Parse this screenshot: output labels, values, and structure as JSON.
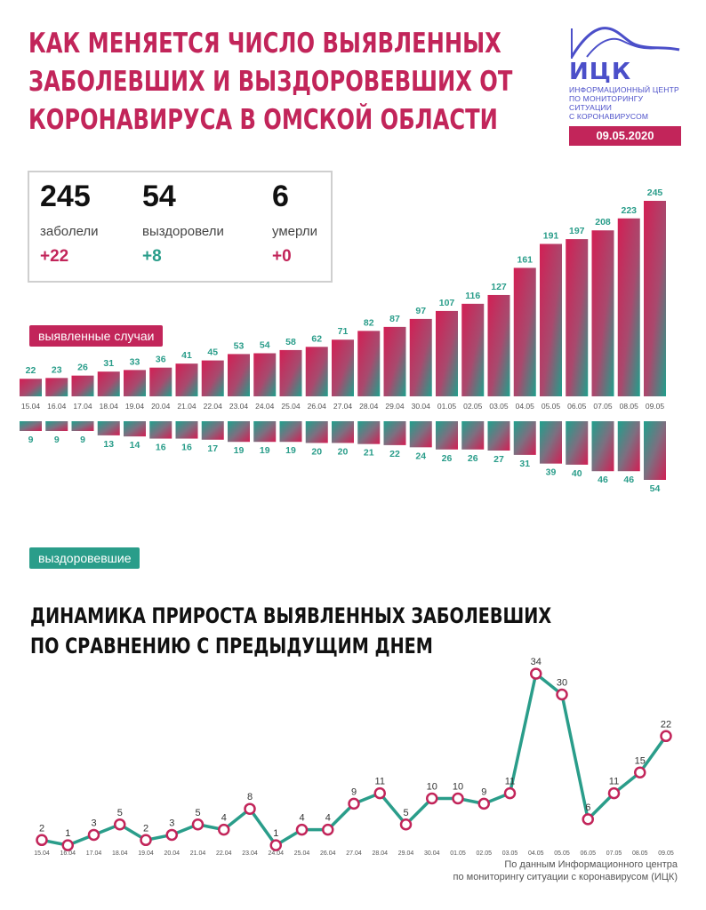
{
  "title": {
    "line1": "КАК МЕНЯЕТСЯ ЧИСЛО ВЫЯВЛЕННЫХ",
    "line2": "ЗАБОЛЕВШИХ И ВЫЗДОРОВЕВШИХ ОТ",
    "line3": "КОРОНАВИРУСА В ОМСКОЙ ОБЛАСТИ"
  },
  "logo": {
    "name": "ИЦК",
    "sub1": "ИНФОРМАЦИОННЫЙ ЦЕНТР",
    "sub2": "ПО МОНИТОРИНГУ СИТУАЦИИ",
    "sub3": "С КОРОНАВИРУСОМ",
    "date": "09.05.2020"
  },
  "stats": {
    "cases": {
      "value": "245",
      "label": "заболели",
      "delta": "+22"
    },
    "recovered": {
      "value": "54",
      "label": "выздоровели",
      "delta": "+8"
    },
    "deaths": {
      "value": "6",
      "label": "умерли",
      "delta": "+0"
    }
  },
  "tags": {
    "cases": "выявленные случаи",
    "recovered": "выздоровевшие"
  },
  "subtitle": {
    "line1": "ДИНАМИКА ПРИРОСТА ВЫЯВЛЕННЫХ ЗАБОЛЕВШИХ",
    "line2": "ПО СРАВНЕНИЮ С ПРЕДЫДУЩИМ ДНЕМ"
  },
  "source": {
    "line1": "По данным Информационного центра",
    "line2": "по мониторингу ситуации с коронавирусом (ИЦК)"
  },
  "colors": {
    "accent": "#c2255a",
    "teal": "#2a9d8a",
    "logo": "#4b4fc9"
  },
  "chart_data": [
    {
      "type": "bar",
      "categories": [
        "15.04",
        "16.04",
        "17.04",
        "18.04",
        "19.04",
        "20.04",
        "21.04",
        "22.04",
        "23.04",
        "24.04",
        "25.04",
        "26.04",
        "27.04",
        "28.04",
        "29.04",
        "30.04",
        "01.05",
        "02.05",
        "03.05",
        "04.05",
        "05.05",
        "06.05",
        "07.05",
        "08.05",
        "09.05"
      ],
      "series": [
        {
          "name": "выявленные случаи",
          "values": [
            22,
            23,
            26,
            31,
            33,
            36,
            41,
            45,
            53,
            54,
            58,
            62,
            71,
            82,
            87,
            97,
            107,
            116,
            127,
            161,
            191,
            197,
            208,
            223,
            245
          ]
        },
        {
          "name": "выздоровевшие",
          "values": [
            9,
            9,
            9,
            13,
            14,
            16,
            16,
            17,
            19,
            19,
            19,
            20,
            20,
            21,
            22,
            24,
            26,
            26,
            27,
            31,
            39,
            40,
            46,
            46,
            54
          ]
        }
      ]
    },
    {
      "type": "line",
      "title": "ДИНАМИКА ПРИРОСТА ВЫЯВЛЕННЫХ ЗАБОЛЕВШИХ ПО СРАВНЕНИЮ С ПРЕДЫДУЩИМ ДНЕМ",
      "x": [
        "15.04",
        "16.04",
        "17.04",
        "18.04",
        "19.04",
        "20.04",
        "21.04",
        "22.04",
        "23.04",
        "24.04",
        "25.04",
        "26.04",
        "27.04",
        "28.04",
        "29.04",
        "30.04",
        "01.05",
        "02.05",
        "03.05",
        "04.05",
        "05.05",
        "06.05",
        "07.05",
        "08.05",
        "09.05"
      ],
      "values": [
        2,
        1,
        3,
        5,
        2,
        3,
        5,
        4,
        8,
        1,
        4,
        4,
        9,
        11,
        5,
        10,
        10,
        9,
        11,
        34,
        30,
        6,
        11,
        15,
        22
      ]
    }
  ]
}
